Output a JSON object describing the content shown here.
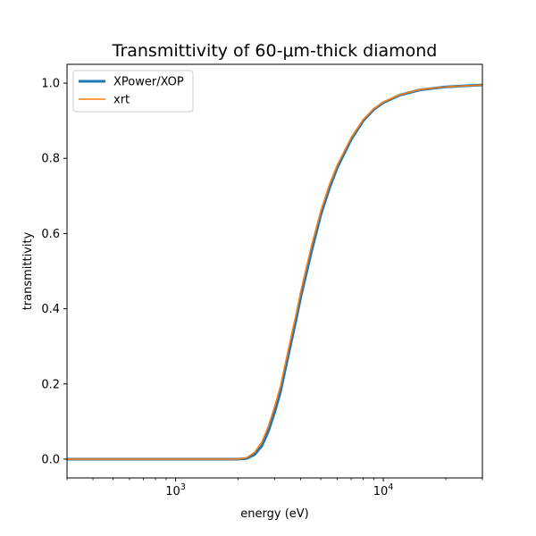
{
  "chart_data": {
    "type": "line",
    "title": "Transmittivity of 60-μm-thick diamond",
    "xlabel": "energy (eV)",
    "ylabel": "transmittivity",
    "xscale": "log",
    "xlim": [
      300,
      30000
    ],
    "ylim": [
      -0.05,
      1.05
    ],
    "yticks": [
      0.0,
      0.2,
      0.4,
      0.6,
      0.8,
      1.0
    ],
    "ytick_labels": [
      "0.0",
      "0.2",
      "0.4",
      "0.6",
      "0.8",
      "1.0"
    ],
    "xticks": [
      1000,
      10000
    ],
    "xtick_labels": [
      {
        "base": "10",
        "exp": "3"
      },
      {
        "base": "10",
        "exp": "4"
      }
    ],
    "grid": false,
    "legend_position": "top-left",
    "series": [
      {
        "name": "XPower/XOP",
        "color": "#1f77b4",
        "x": [
          300,
          500,
          1000,
          1500,
          1800,
          2000,
          2200,
          2400,
          2600,
          2800,
          3000,
          3200,
          3500,
          3800,
          4000,
          4500,
          5000,
          5500,
          6000,
          7000,
          8000,
          9000,
          10000,
          12000,
          15000,
          20000,
          25000,
          30000
        ],
        "y": [
          0.0,
          0.0,
          0.0,
          0.0,
          0.0,
          0.0,
          0.002,
          0.012,
          0.035,
          0.075,
          0.125,
          0.18,
          0.28,
          0.37,
          0.43,
          0.55,
          0.65,
          0.72,
          0.775,
          0.85,
          0.9,
          0.93,
          0.948,
          0.968,
          0.982,
          0.99,
          0.993,
          0.995
        ]
      },
      {
        "name": "xrt",
        "color": "#ff7f0e",
        "x": [
          300,
          500,
          1000,
          1500,
          1800,
          2000,
          2200,
          2400,
          2600,
          2800,
          3000,
          3200,
          3500,
          3800,
          4000,
          4500,
          5000,
          5500,
          6000,
          7000,
          8000,
          9000,
          10000,
          12000,
          15000,
          20000,
          25000,
          30000
        ],
        "y": [
          0.0,
          0.0,
          0.0,
          0.0,
          0.0,
          0.0,
          0.004,
          0.018,
          0.045,
          0.088,
          0.14,
          0.195,
          0.295,
          0.385,
          0.445,
          0.565,
          0.66,
          0.73,
          0.782,
          0.855,
          0.903,
          0.932,
          0.95,
          0.969,
          0.983,
          0.99,
          0.993,
          0.995
        ]
      }
    ]
  }
}
